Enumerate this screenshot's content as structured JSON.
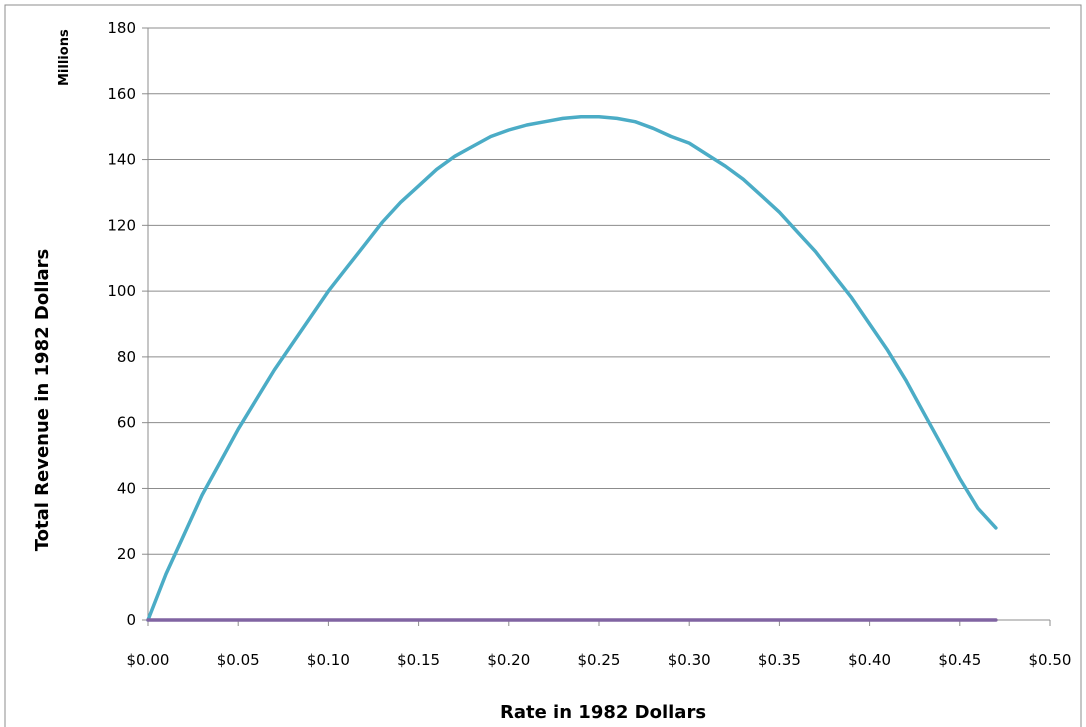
{
  "chart_data": {
    "type": "line",
    "title": "",
    "xlabel": "Rate in 1982 Dollars",
    "ylabel": "Total Revenue in 1982 Dollars",
    "y_unit_label": "Millions",
    "xlim": [
      0,
      0.5
    ],
    "ylim": [
      0,
      180
    ],
    "x_ticks": [
      0,
      0.05,
      0.1,
      0.15,
      0.2,
      0.25,
      0.3,
      0.35,
      0.4,
      0.45,
      0.5
    ],
    "x_tick_labels": [
      "$0.00",
      "$0.05",
      "$0.10",
      "$0.15",
      "$0.20",
      "$0.25",
      "$0.30",
      "$0.35",
      "$0.40",
      "$0.45",
      "$0.50"
    ],
    "y_ticks": [
      0,
      20,
      40,
      60,
      80,
      100,
      120,
      140,
      160,
      180
    ],
    "y_tick_labels": [
      "0",
      "20",
      "40",
      "60",
      "80",
      "100",
      "120",
      "140",
      "160",
      "180"
    ],
    "grid": "horizontal",
    "legend": "none",
    "colors": {
      "revenue": "#4bacc6",
      "baseline": "#8064a2",
      "grid": "#8c8c8c",
      "axis": "#8c8c8c",
      "frame": "#8c8c8c"
    },
    "series": [
      {
        "color_key": "revenue",
        "x": [
          0.0,
          0.01,
          0.02,
          0.03,
          0.04,
          0.05,
          0.06,
          0.07,
          0.08,
          0.09,
          0.1,
          0.11,
          0.12,
          0.13,
          0.14,
          0.15,
          0.16,
          0.17,
          0.18,
          0.19,
          0.2,
          0.21,
          0.22,
          0.23,
          0.24,
          0.25,
          0.26,
          0.27,
          0.28,
          0.29,
          0.3,
          0.31,
          0.32,
          0.33,
          0.34,
          0.35,
          0.36,
          0.37,
          0.38,
          0.39,
          0.4,
          0.41,
          0.42,
          0.43,
          0.44,
          0.45,
          0.46,
          0.47
        ],
        "values": [
          0,
          14,
          26,
          38,
          48,
          58,
          67,
          76,
          84,
          92,
          100,
          107,
          114,
          121,
          127,
          132,
          137,
          141,
          144,
          147,
          149,
          150.5,
          151.5,
          152.5,
          153,
          153,
          152.5,
          151.5,
          149.5,
          147,
          145,
          141.5,
          138,
          134,
          129,
          124,
          118,
          112,
          105,
          98,
          90,
          82,
          73,
          63,
          53,
          43,
          34,
          28
        ]
      },
      {
        "color_key": "baseline",
        "x": [
          0.0,
          0.47
        ],
        "values": [
          0,
          0
        ]
      }
    ]
  }
}
